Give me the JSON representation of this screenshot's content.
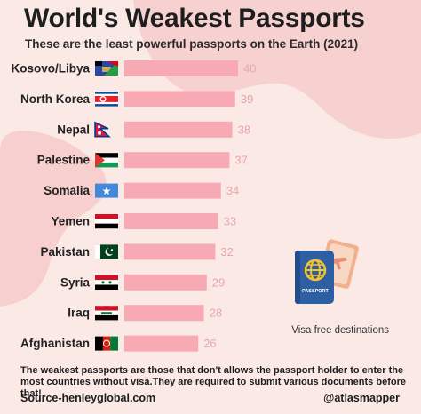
{
  "header": {
    "title": "World's Weakest Passports",
    "subtitle": "These are the least powerful passports on the Earth (2021)"
  },
  "legend_note": "Visa free destinations",
  "footnote": "The weakest passports are those that don't allows the passport holder to enter the most countries without visa.They are required to submit various documents before that!",
  "source": "Source-henleyglobal.com",
  "handle": "@atlasmapper",
  "passport_icon": {
    "name": "passport-icon",
    "label": "PASSPORT"
  },
  "colors": {
    "bar": "#f8aab4",
    "value_text": "#e7a6ae",
    "blob": "#f6c8c8",
    "background": "#fbe9e6"
  },
  "chart_data": {
    "type": "bar",
    "orientation": "horizontal",
    "categories": [
      "Kosovo/Libya",
      "North Korea",
      "Nepal",
      "Palestine",
      "Somalia",
      "Yemen",
      "Pakistan",
      "Syria",
      "Iraq",
      "Afghanistan"
    ],
    "values": [
      40,
      39,
      38,
      37,
      34,
      33,
      32,
      29,
      28,
      26
    ],
    "flags": [
      "kosovo-libya-flag",
      "north-korea-flag",
      "nepal-flag",
      "palestine-flag",
      "somalia-flag",
      "yemen-flag",
      "pakistan-flag",
      "syria-flag",
      "iraq-flag",
      "afghanistan-flag"
    ],
    "value_label": "Visa free destinations",
    "xlim": [
      0,
      40
    ],
    "grid": false
  }
}
